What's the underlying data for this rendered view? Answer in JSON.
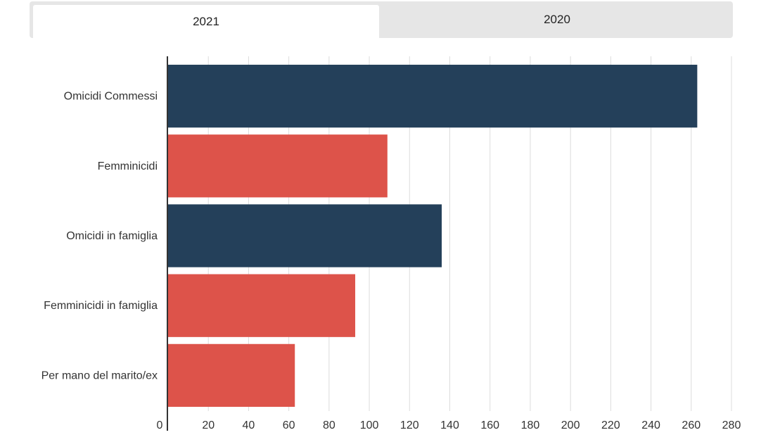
{
  "tabs": [
    {
      "label": "2021",
      "active": true
    },
    {
      "label": "2020",
      "active": false
    }
  ],
  "chart_data": {
    "type": "bar",
    "orientation": "horizontal",
    "categories": [
      "Omicidi Commessi",
      "Femminicidi",
      "Omicidi in famiglia",
      "Femminicidi in famiglia",
      "Per mano del marito/ex"
    ],
    "values": [
      263,
      109,
      136,
      93,
      63
    ],
    "bar_colors": [
      "#24405a",
      "#dd534a",
      "#24405a",
      "#dd534a",
      "#dd534a"
    ],
    "xlim": [
      0,
      280
    ],
    "xticks": [
      0,
      20,
      40,
      60,
      80,
      100,
      120,
      140,
      160,
      180,
      200,
      220,
      240,
      260,
      280
    ],
    "grid": true,
    "title": "",
    "xlabel": "",
    "ylabel": ""
  }
}
